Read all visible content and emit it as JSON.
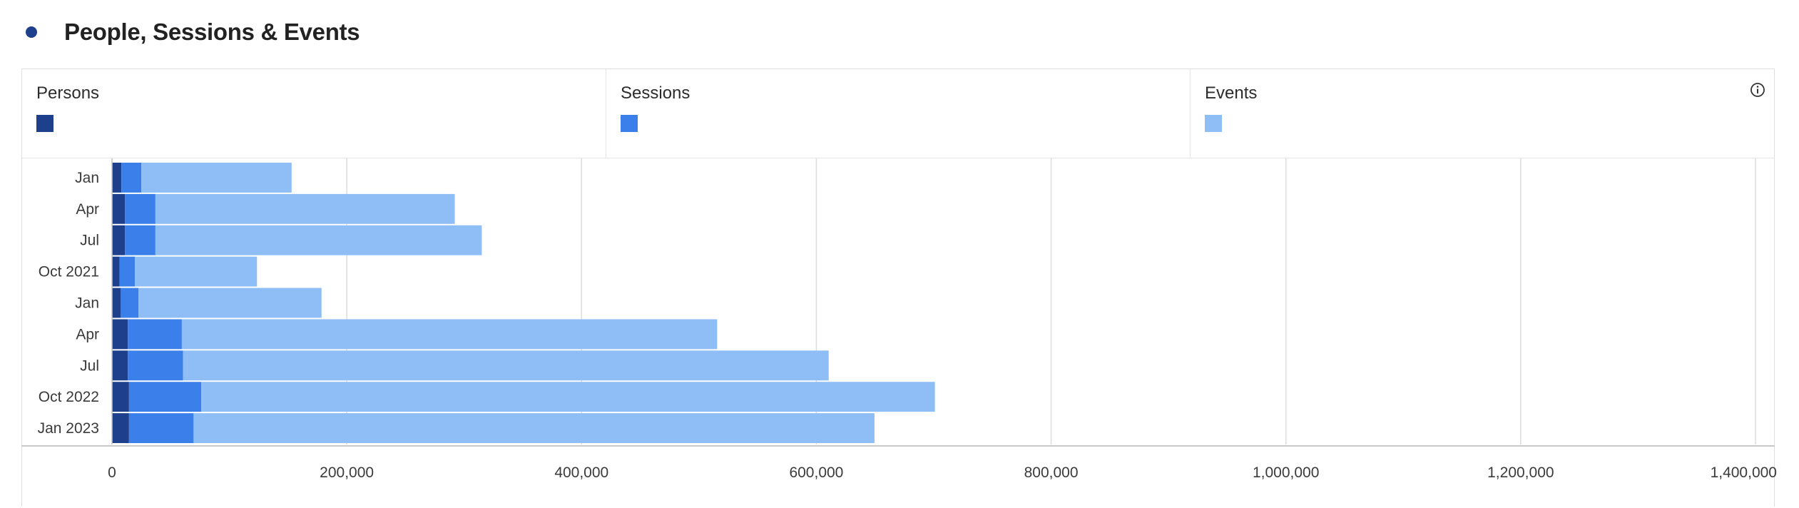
{
  "header": {
    "title": "People, Sessions & Events",
    "dot_color": "#1e3f8c"
  },
  "legend": [
    {
      "label": "Persons",
      "color": "#1e3f8c"
    },
    {
      "label": "Sessions",
      "color": "#3b80ea"
    },
    {
      "label": "Events",
      "color": "#8fbdf5"
    }
  ],
  "info_icon": "info-icon",
  "chart_data": {
    "type": "bar",
    "orientation": "horizontal",
    "stacked": true,
    "categories": [
      "Jan",
      "Apr",
      "Jul",
      "Oct 2021",
      "Jan",
      "Apr",
      "Jul",
      "Oct 2022",
      "Jan 2023"
    ],
    "series": [
      {
        "name": "Persons",
        "color": "#1e3f8c",
        "values": [
          8000,
          11000,
          11000,
          6500,
          7500,
          13500,
          13500,
          14500,
          14500
        ]
      },
      {
        "name": "Sessions",
        "color": "#3b80ea",
        "values": [
          17000,
          26000,
          26000,
          13000,
          15000,
          46000,
          47000,
          61500,
          55000
        ]
      },
      {
        "name": "Events",
        "color": "#8fbdf5",
        "values": [
          128000,
          255000,
          278000,
          104000,
          156000,
          456000,
          550000,
          625000,
          580000
        ]
      }
    ],
    "xlim": [
      0,
      1400000
    ],
    "xticks": [
      0,
      200000,
      400000,
      600000,
      800000,
      1000000,
      1200000,
      1400000
    ],
    "xtick_labels": [
      "0",
      "200,000",
      "400,000",
      "600,000",
      "800,000",
      "1,000,000",
      "1,200,000",
      "1,400,000"
    ],
    "grid": true,
    "legend_position": "top"
  }
}
